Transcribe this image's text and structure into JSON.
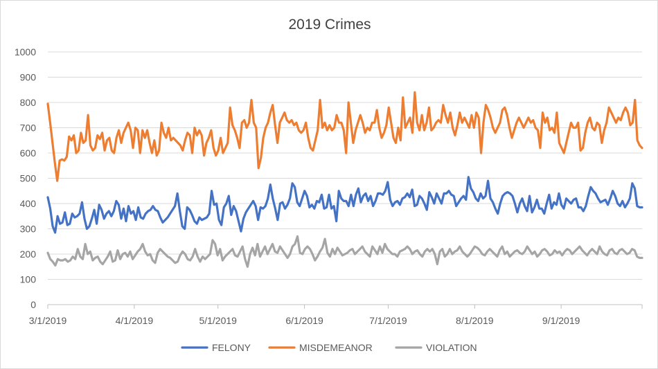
{
  "chart_data": {
    "type": "line",
    "title": "2019 Crimes",
    "xlabel": "",
    "ylabel": "",
    "x_start": "3/1/2019",
    "x_end": "9/30/2019",
    "x_ticks": [
      "3/1/2019",
      "4/1/2019",
      "5/1/2019",
      "6/1/2019",
      "7/1/2019",
      "8/1/2019",
      "9/1/2019"
    ],
    "ylim": [
      0,
      1000
    ],
    "y_ticks": [
      0,
      100,
      200,
      300,
      400,
      500,
      600,
      700,
      800,
      900,
      1000
    ],
    "grid": "horizontal",
    "legend": "bottom",
    "series": [
      {
        "name": "FELONY",
        "color": "#4472C4",
        "values": [
          425,
          380,
          310,
          285,
          350,
          320,
          325,
          365,
          315,
          320,
          360,
          345,
          350,
          360,
          405,
          340,
          300,
          310,
          340,
          375,
          320,
          395,
          375,
          340,
          360,
          370,
          350,
          370,
          410,
          395,
          340,
          380,
          330,
          390,
          360,
          370,
          335,
          385,
          345,
          340,
          360,
          370,
          375,
          390,
          375,
          370,
          345,
          325,
          335,
          345,
          360,
          375,
          390,
          440,
          370,
          310,
          300,
          385,
          375,
          355,
          330,
          320,
          345,
          335,
          340,
          345,
          360,
          450,
          395,
          400,
          335,
          315,
          385,
          400,
          430,
          355,
          390,
          370,
          330,
          290,
          340,
          365,
          380,
          395,
          410,
          390,
          335,
          385,
          380,
          390,
          420,
          475,
          420,
          380,
          335,
          400,
          405,
          380,
          395,
          420,
          480,
          465,
          405,
          390,
          420,
          450,
          430,
          385,
          395,
          380,
          410,
          405,
          435,
          380,
          385,
          435,
          380,
          390,
          330,
          450,
          420,
          410,
          410,
          390,
          435,
          390,
          435,
          460,
          405,
          430,
          440,
          410,
          430,
          390,
          410,
          440,
          440,
          435,
          450,
          485,
          415,
          390,
          405,
          410,
          395,
          420,
          425,
          440,
          425,
          455,
          390,
          395,
          430,
          420,
          400,
          375,
          445,
          425,
          400,
          440,
          420,
          400,
          440,
          440,
          450,
          435,
          430,
          390,
          405,
          420,
          430,
          415,
          505,
          460,
          445,
          420,
          410,
          440,
          420,
          430,
          490,
          420,
          405,
          380,
          360,
          400,
          430,
          440,
          445,
          440,
          430,
          400,
          365,
          400,
          420,
          390,
          370,
          430,
          365,
          385,
          415,
          380,
          380,
          360,
          400,
          435,
          380,
          405,
          395,
          440,
          395,
          380,
          420,
          410,
          400,
          415,
          420,
          385,
          385,
          370,
          390,
          430,
          465,
          450,
          440,
          420,
          405,
          410,
          415,
          395,
          420,
          450,
          430,
          400,
          390,
          410,
          385,
          400,
          420,
          480,
          460,
          390,
          385,
          385
        ]
      },
      {
        "name": "MISDEMEANOR",
        "color": "#ED7D31",
        "values": [
          795,
          720,
          640,
          560,
          490,
          570,
          575,
          570,
          585,
          665,
          650,
          670,
          600,
          610,
          680,
          640,
          650,
          750,
          630,
          610,
          620,
          670,
          655,
          680,
          610,
          650,
          660,
          610,
          600,
          660,
          690,
          640,
          680,
          700,
          720,
          690,
          620,
          700,
          690,
          600,
          690,
          660,
          690,
          640,
          600,
          650,
          590,
          610,
          720,
          680,
          660,
          700,
          650,
          660,
          650,
          640,
          630,
          610,
          650,
          680,
          670,
          600,
          700,
          670,
          690,
          670,
          590,
          640,
          660,
          690,
          620,
          590,
          610,
          660,
          600,
          620,
          640,
          780,
          710,
          690,
          660,
          620,
          720,
          730,
          700,
          720,
          810,
          720,
          700,
          540,
          580,
          660,
          700,
          720,
          760,
          790,
          710,
          640,
          720,
          740,
          760,
          730,
          720,
          730,
          710,
          720,
          690,
          680,
          690,
          720,
          660,
          620,
          610,
          650,
          690,
          810,
          700,
          720,
          690,
          710,
          690,
          700,
          750,
          720,
          720,
          690,
          600,
          800,
          720,
          640,
          690,
          720,
          750,
          720,
          680,
          700,
          690,
          720,
          720,
          770,
          700,
          660,
          680,
          710,
          780,
          720,
          660,
          640,
          700,
          650,
          820,
          700,
          720,
          740,
          680,
          840,
          720,
          690,
          750,
          690,
          720,
          780,
          690,
          700,
          720,
          730,
          720,
          790,
          750,
          720,
          760,
          700,
          670,
          710,
          760,
          720,
          740,
          720,
          700,
          750,
          700,
          760,
          740,
          600,
          720,
          790,
          770,
          740,
          700,
          680,
          700,
          720,
          770,
          780,
          750,
          700,
          660,
          690,
          720,
          740,
          720,
          700,
          720,
          740,
          720,
          730,
          700,
          690,
          620,
          760,
          720,
          740,
          690,
          700,
          680,
          760,
          640,
          620,
          600,
          640,
          680,
          720,
          700,
          700,
          720,
          610,
          620,
          680,
          720,
          740,
          700,
          690,
          720,
          710,
          640,
          690,
          720,
          780,
          760,
          740,
          720,
          740,
          730,
          760,
          780,
          760,
          710,
          720,
          810,
          650,
          630,
          620
        ]
      },
      {
        "name": "VIOLATION",
        "color": "#A5A5A5",
        "values": [
          205,
          180,
          170,
          155,
          180,
          175,
          175,
          180,
          170,
          175,
          190,
          180,
          220,
          190,
          180,
          240,
          200,
          210,
          175,
          185,
          190,
          170,
          160,
          175,
          190,
          210,
          170,
          175,
          215,
          180,
          200,
          205,
          190,
          210,
          180,
          195,
          210,
          220,
          240,
          210,
          195,
          200,
          175,
          165,
          205,
          220,
          210,
          200,
          190,
          185,
          175,
          165,
          170,
          195,
          210,
          200,
          180,
          175,
          190,
          220,
          190,
          170,
          190,
          180,
          190,
          200,
          255,
          240,
          195,
          220,
          175,
          190,
          200,
          210,
          220,
          195,
          190,
          210,
          230,
          180,
          150,
          200,
          225,
          195,
          240,
          190,
          210,
          230,
          200,
          220,
          240,
          210,
          205,
          230,
          215,
          200,
          185,
          200,
          230,
          240,
          270,
          205,
          200,
          220,
          230,
          220,
          200,
          175,
          190,
          210,
          225,
          260,
          205,
          190,
          220,
          200,
          225,
          210,
          195,
          200,
          205,
          215,
          220,
          200,
          210,
          220,
          230,
          210,
          200,
          190,
          230,
          215,
          200,
          230,
          205,
          240,
          220,
          210,
          200,
          200,
          190,
          210,
          215,
          220,
          230,
          220,
          200,
          210,
          215,
          200,
          190,
          210,
          220,
          210,
          220,
          200,
          160,
          210,
          220,
          190,
          200,
          220,
          200,
          210,
          215,
          230,
          210,
          200,
          190,
          200,
          215,
          230,
          225,
          215,
          200,
          195,
          210,
          220,
          210,
          200,
          190,
          215,
          230,
          200,
          210,
          190,
          200,
          210,
          215,
          205,
          200,
          210,
          230,
          215,
          200,
          210,
          190,
          200,
          215,
          220,
          210,
          195,
          200,
          215,
          205,
          210,
          195,
          210,
          220,
          215,
          200,
          210,
          220,
          230,
          215,
          205,
          195,
          210,
          220,
          210,
          200,
          230,
          210,
          200,
          195,
          215,
          220,
          205,
          200,
          215,
          220,
          210,
          200,
          205,
          220,
          215,
          190,
          185,
          185
        ]
      }
    ]
  }
}
